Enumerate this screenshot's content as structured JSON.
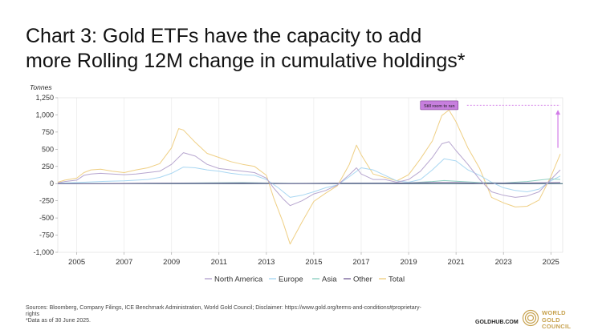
{
  "title": {
    "line1": "Chart 3: Gold ETFs have the capacity to add",
    "line2": "more Rolling 12M change in cumulative holdings*"
  },
  "footer": {
    "sources_line1": "Sources: Bloomberg, Company Filings, ICE Benchmark Administration, World Gold Council; Disclaimer: https://www.gold.org/terms-and-conditions#proprietary-",
    "sources_line2": "rights",
    "note": "*Data as of 30 June 2025.",
    "site": "GOLDHUB.COM",
    "logo_lines": [
      "WORLD",
      "GOLD",
      "COUNCIL"
    ]
  },
  "colors": {
    "north_america": "#b7a6cf",
    "europe": "#a9d7f2",
    "asia": "#8fd0c2",
    "other": "#7d6a9e",
    "total": "#efcf84",
    "annotation": "#d17ae8",
    "logo": "#c7a24f"
  },
  "chart_data": {
    "type": "line",
    "ylabel": "Tonnes",
    "ylim": [
      -1000,
      1250
    ],
    "xlim": [
      2004.2,
      2025.5
    ],
    "yticks": [
      -1000,
      -750,
      -500,
      -250,
      0,
      250,
      500,
      750,
      1000,
      1250
    ],
    "ytick_labels": [
      "-1,000",
      "-750",
      "-500",
      "-250",
      "0",
      "250",
      "500",
      "750",
      "1,000",
      "1,250"
    ],
    "xticks": [
      2005,
      2007,
      2009,
      2011,
      2013,
      2015,
      2017,
      2019,
      2021,
      2023,
      2025
    ],
    "xtick_labels": [
      "2005",
      "2007",
      "2009",
      "2011",
      "2013",
      "2015",
      "2017",
      "2019",
      "2021",
      "2023",
      "2025"
    ],
    "grid": "vertical",
    "legend": "bottom-center",
    "annotation": {
      "text": "Still room to run",
      "y": 1140,
      "arrow_from_y": 520,
      "arrow_to_y": 1050,
      "x_start": 2019.6,
      "x_end": 2025.4
    },
    "series": [
      {
        "name": "North America",
        "x": [
          2004.2,
          2004.5,
          2005,
          2005.3,
          2005.6,
          2006,
          2006.5,
          2007,
          2007.5,
          2008,
          2008.5,
          2009,
          2009.5,
          2010,
          2010.5,
          2011,
          2011.5,
          2012,
          2012.5,
          2013,
          2013.3,
          2013.7,
          2014,
          2014.5,
          2015,
          2015.5,
          2016,
          2016.5,
          2016.8,
          2017,
          2017.5,
          2018,
          2018.5,
          2019,
          2019.5,
          2020,
          2020.4,
          2020.7,
          2021,
          2021.5,
          2022,
          2022.5,
          2023,
          2023.5,
          2024,
          2024.5,
          2025,
          2025.4
        ],
        "values": [
          10,
          30,
          50,
          120,
          140,
          150,
          140,
          130,
          140,
          160,
          180,
          280,
          450,
          400,
          280,
          220,
          200,
          180,
          160,
          80,
          -60,
          -220,
          -320,
          -250,
          -150,
          -100,
          -20,
          130,
          230,
          140,
          60,
          60,
          20,
          60,
          180,
          380,
          580,
          610,
          480,
          280,
          60,
          -120,
          -170,
          -200,
          -180,
          -120,
          60,
          200
        ]
      },
      {
        "name": "Europe",
        "x": [
          2004.2,
          2005,
          2006,
          2007,
          2008,
          2008.5,
          2009,
          2009.5,
          2010,
          2010.5,
          2011,
          2011.5,
          2012,
          2012.5,
          2013,
          2013.5,
          2014,
          2014.5,
          2015,
          2015.5,
          2016,
          2016.5,
          2017,
          2017.5,
          2018,
          2018.5,
          2019,
          2019.5,
          2020,
          2020.5,
          2021,
          2021.5,
          2022,
          2022.5,
          2023,
          2023.5,
          2024,
          2024.5,
          2025,
          2025.4
        ],
        "values": [
          5,
          15,
          30,
          40,
          60,
          90,
          150,
          240,
          230,
          200,
          180,
          150,
          130,
          120,
          60,
          -60,
          -200,
          -170,
          -120,
          -60,
          -20,
          100,
          230,
          200,
          120,
          40,
          20,
          60,
          200,
          360,
          330,
          200,
          120,
          20,
          -60,
          -100,
          -120,
          -80,
          40,
          110
        ]
      },
      {
        "name": "Asia",
        "x": [
          2004.2,
          2006,
          2008,
          2010,
          2012,
          2013,
          2014,
          2016,
          2018,
          2019,
          2020,
          2020.5,
          2021,
          2022,
          2023,
          2024,
          2024.5,
          2025,
          2025.4
        ],
        "values": [
          0,
          2,
          5,
          10,
          15,
          10,
          5,
          8,
          10,
          12,
          30,
          45,
          35,
          15,
          10,
          30,
          50,
          70,
          60
        ]
      },
      {
        "name": "Other",
        "x": [
          2004.2,
          2006,
          2008,
          2010,
          2012,
          2014,
          2016,
          2018,
          2020,
          2021,
          2022,
          2024,
          2025.4
        ],
        "values": [
          0,
          0,
          5,
          5,
          8,
          2,
          5,
          5,
          15,
          15,
          5,
          10,
          15
        ]
      },
      {
        "name": "Total",
        "x": [
          2004.2,
          2004.5,
          2005,
          2005.3,
          2005.6,
          2006,
          2006.5,
          2007,
          2007.5,
          2008,
          2008.5,
          2009,
          2009.3,
          2009.5,
          2010,
          2010.5,
          2011,
          2011.5,
          2012,
          2012.5,
          2013,
          2013.3,
          2013.7,
          2014,
          2014.5,
          2015,
          2015.5,
          2016,
          2016.5,
          2016.8,
          2017,
          2017.5,
          2018,
          2018.5,
          2019,
          2019.5,
          2020,
          2020.4,
          2020.7,
          2021,
          2021.5,
          2022,
          2022.5,
          2023,
          2023.5,
          2024,
          2024.5,
          2025,
          2025.4
        ],
        "values": [
          20,
          50,
          80,
          160,
          200,
          210,
          180,
          160,
          200,
          230,
          290,
          520,
          800,
          780,
          600,
          440,
          380,
          320,
          280,
          250,
          120,
          -200,
          -560,
          -880,
          -560,
          -260,
          -140,
          -30,
          280,
          560,
          420,
          140,
          90,
          40,
          130,
          360,
          620,
          990,
          1070,
          900,
          520,
          220,
          -200,
          -280,
          -340,
          -330,
          -240,
          100,
          430
        ]
      }
    ]
  }
}
